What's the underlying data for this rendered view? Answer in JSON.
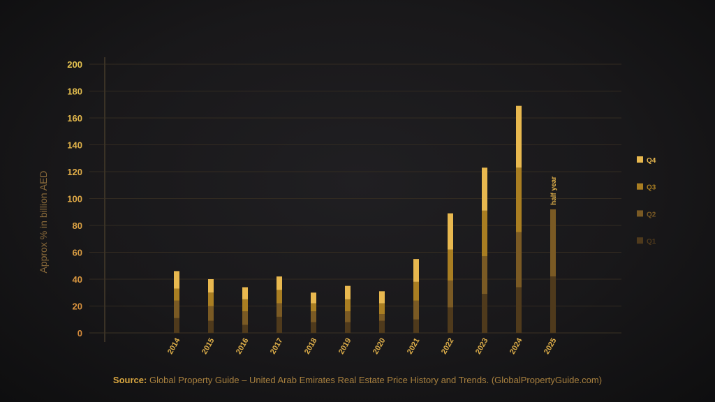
{
  "chart_data": {
    "type": "bar",
    "stacked": true,
    "title": "",
    "xlabel": "",
    "ylabel": "Approx % in billion AED",
    "ylim": [
      0,
      200
    ],
    "yticks": [
      0,
      20,
      40,
      60,
      80,
      100,
      120,
      140,
      160,
      180,
      200
    ],
    "grid": true,
    "legend_position": "right",
    "categories": [
      "2014",
      "2015",
      "2016",
      "2017",
      "2018",
      "2019",
      "2020",
      "2021",
      "2022",
      "2023",
      "2024",
      "2025"
    ],
    "series": [
      {
        "name": "Q1",
        "color": "#4f3a1c",
        "values": [
          11,
          9,
          6,
          12,
          8,
          8,
          9,
          10,
          19,
          29,
          34,
          42
        ]
      },
      {
        "name": "Q2",
        "color": "#7a5a24",
        "values": [
          13,
          11,
          10,
          10,
          8,
          8,
          5,
          14,
          20,
          28,
          41,
          50
        ]
      },
      {
        "name": "Q3",
        "color": "#a97e22",
        "values": [
          9,
          10,
          9,
          10,
          6,
          9,
          8,
          14,
          23,
          34,
          48,
          null
        ]
      },
      {
        "name": "Q4",
        "color": "#e8b84f",
        "values": [
          13,
          10,
          9,
          10,
          8,
          10,
          9,
          17,
          27,
          32,
          46,
          null
        ]
      }
    ],
    "annotations": [
      {
        "category": "2025",
        "text": "half year"
      }
    ]
  },
  "source": {
    "label": "Source:",
    "text": "Global Property Guide – United Arab Emirates Real Estate Price History and Trends. (GlobalPropertyGuide.com)"
  }
}
